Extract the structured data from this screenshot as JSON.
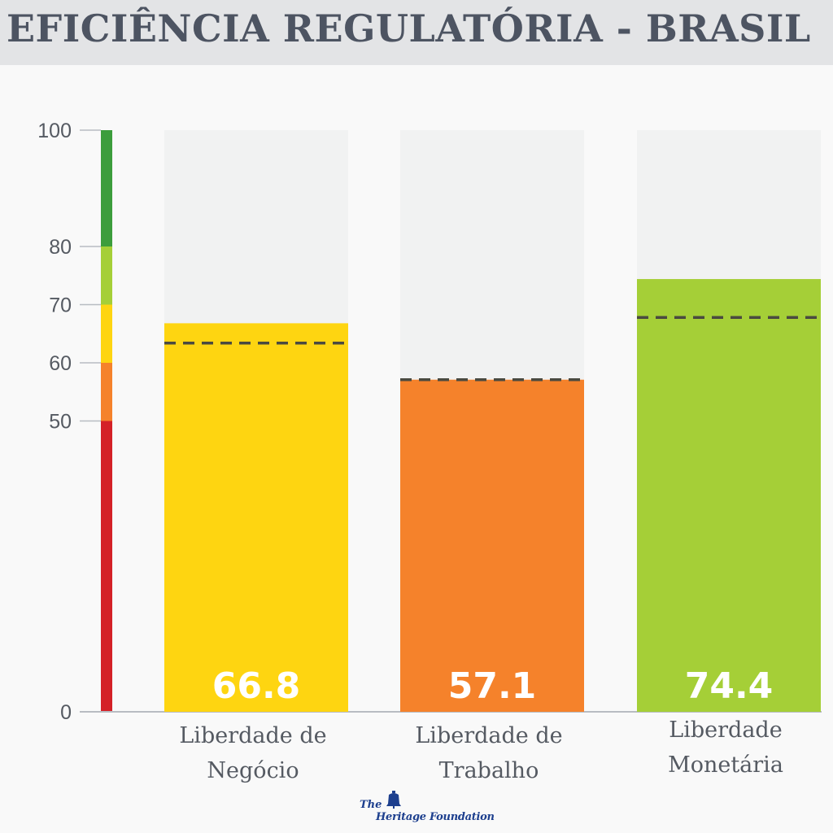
{
  "header": {
    "title": "EFICIÊNCIA REGULATÓRIA - BRASIL"
  },
  "footer": {
    "logo_the": "The",
    "logo_name": "Heritage Foundation",
    "logo_icon": "liberty-bell-icon"
  },
  "chart_data": {
    "type": "bar",
    "title": "EFICIÊNCIA REGULATÓRIA - BRASIL",
    "xlabel": "",
    "ylabel": "",
    "ylim": [
      0,
      100
    ],
    "yticks": [
      0,
      50,
      60,
      70,
      80,
      100
    ],
    "categories": [
      {
        "line1": "Liberdade de",
        "line2": "Negócio"
      },
      {
        "line1": "Liberdade de",
        "line2": "Trabalho"
      },
      {
        "line1": "Liberdade",
        "line2": "Monetária"
      }
    ],
    "values": [
      66.8,
      57.1,
      74.4
    ],
    "value_labels": [
      "66.8",
      "57.1",
      "74.4"
    ],
    "reference_values": [
      63.4,
      57.1,
      67.8
    ],
    "bar_colors": [
      "#fed511",
      "#f5822b",
      "#a5cf37"
    ],
    "score_bands": [
      {
        "from": 0,
        "to": 50,
        "color": "#d42127"
      },
      {
        "from": 50,
        "to": 60,
        "color": "#f5822b"
      },
      {
        "from": 60,
        "to": 70,
        "color": "#fed511"
      },
      {
        "from": 70,
        "to": 80,
        "color": "#a5cf37"
      },
      {
        "from": 80,
        "to": 100,
        "color": "#3c9d3c"
      }
    ],
    "grid": false,
    "legend": "none"
  }
}
